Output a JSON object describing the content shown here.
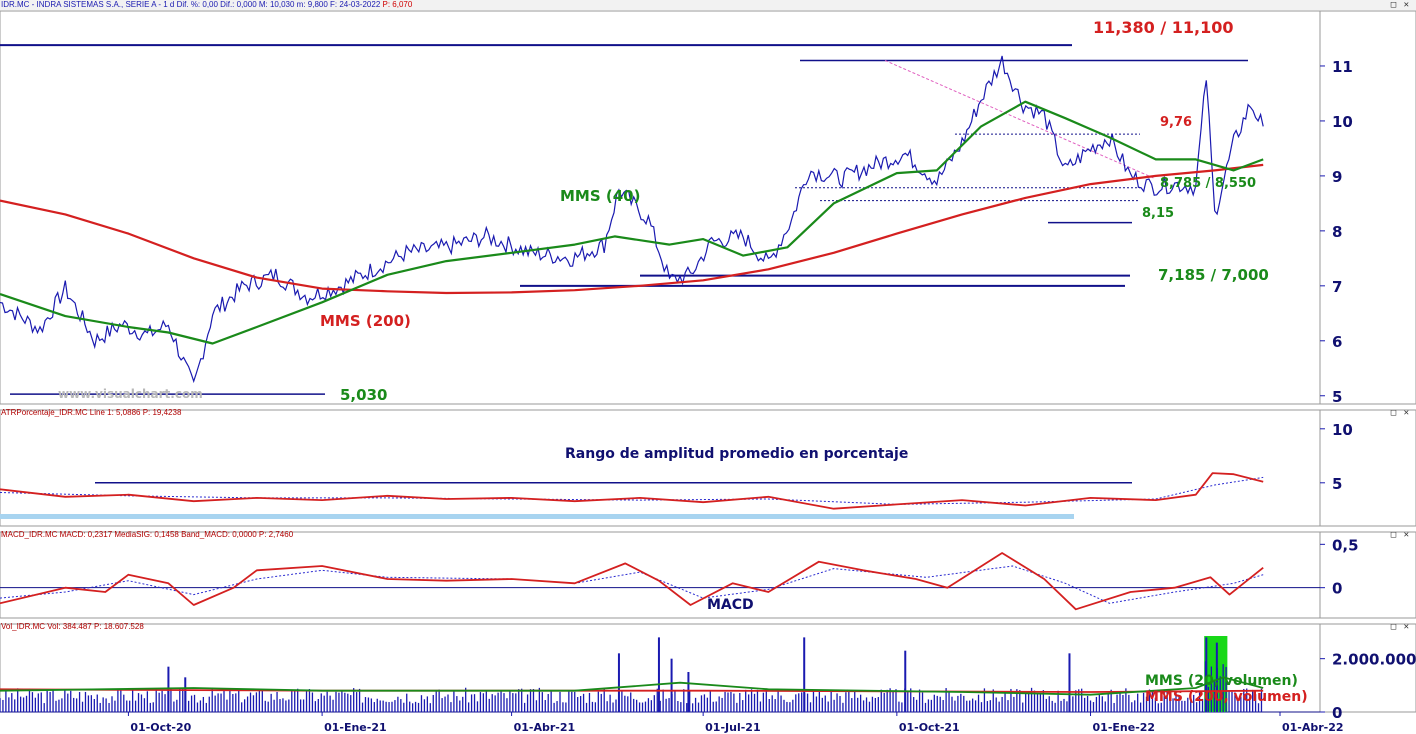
{
  "header": {
    "main": "IDR.MC - INDRA SISTEMAS S.A., SERIE A -  1 d  Dif. %: 0,00  Dif.: 0,000  M: 10,030  m: 9,800  F: 24-03-2022",
    "main_p": "P: 6,070",
    "atr": "ATRPorcentaje_IDR.MC  Line 1: 5,0886  P: 19,4238",
    "macd": "MACD_IDR.MC  MACD: 0,2317  MediaSIG: 0,1458  Band_MACD: 0,0000  P: 2,7460",
    "vol": "Vol_IDR.MC  Vol: 384.487  P: 18.607.528"
  },
  "window_buttons": "□ ✕",
  "annotations": {
    "r1": "11,380 / 11,100",
    "r2": "9,76",
    "r3": "8,785 / 8,550",
    "r4": "8,15",
    "r5": "7,185 / 7,000",
    "r6": "5,030",
    "mms40": "MMS (40)",
    "mms200": "MMS (200)",
    "watermark": "www.visualchart.com",
    "atr_title": "Rango de amplitud promedio en porcentaje",
    "macd_title": "MACD",
    "vol20": "MMS (20, volumen)",
    "vol200": "MMS (200, volumen)"
  },
  "colors": {
    "price": "#1a1ab0",
    "mms40": "#1a8a1a",
    "mms200": "#d42020",
    "level": "#10108a",
    "signal": "#2a2ad0",
    "volume_highlight": "#18d818",
    "atr_band": "#a8d4f0",
    "trend": "#e060c0"
  },
  "chart_data": [
    {
      "type": "line",
      "panel": "price",
      "yticks": [
        5,
        6,
        7,
        8,
        9,
        10,
        11
      ],
      "ylim": [
        4.85,
        12.0
      ],
      "xlim": [
        "2020-08-01",
        "2022-04-20"
      ],
      "xticks": [
        "01-Oct-20",
        "01-Ene-21",
        "01-Abr-21",
        "01-Jul-21",
        "01-Oct-21",
        "01-Ene-22",
        "01-Abr-22"
      ],
      "xtick_dates": [
        "2020-10-01",
        "2021-01-01",
        "2021-04-01",
        "2021-07-01",
        "2021-10-01",
        "2022-01-01",
        "2022-04-01"
      ],
      "series": [
        {
          "key": "price",
          "points": [
            [
              "2020-08-01",
              6.7
            ],
            [
              "2020-08-20",
              6.2
            ],
            [
              "2020-09-01",
              6.95
            ],
            [
              "2020-09-15",
              6.0
            ],
            [
              "2020-09-28",
              6.3
            ],
            [
              "2020-10-10",
              6.1
            ],
            [
              "2020-10-20",
              6.3
            ],
            [
              "2020-11-01",
              5.15
            ],
            [
              "2020-11-10",
              6.5
            ],
            [
              "2020-11-25",
              7.0
            ],
            [
              "2020-12-10",
              7.2
            ],
            [
              "2020-12-25",
              6.8
            ],
            [
              "2021-01-10",
              7.0
            ],
            [
              "2021-01-25",
              7.3
            ],
            [
              "2021-02-10",
              7.6
            ],
            [
              "2021-03-01",
              7.7
            ],
            [
              "2021-03-20",
              7.9
            ],
            [
              "2021-04-10",
              7.6
            ],
            [
              "2021-04-30",
              7.5
            ],
            [
              "2021-05-15",
              7.75
            ],
            [
              "2021-05-22",
              8.75
            ],
            [
              "2021-06-05",
              8.2
            ],
            [
              "2021-06-15",
              7.1
            ],
            [
              "2021-06-25",
              7.2
            ],
            [
              "2021-07-05",
              7.8
            ],
            [
              "2021-07-20",
              7.9
            ],
            [
              "2021-08-01",
              7.4
            ],
            [
              "2021-08-12",
              8.2
            ],
            [
              "2021-08-20",
              9.1
            ],
            [
              "2021-09-05",
              8.95
            ],
            [
              "2021-09-20",
              9.2
            ],
            [
              "2021-10-05",
              9.4
            ],
            [
              "2021-10-20",
              8.9
            ],
            [
              "2021-11-01",
              9.6
            ],
            [
              "2021-11-10",
              10.4
            ],
            [
              "2021-11-20",
              11.1
            ],
            [
              "2021-11-30",
              10.3
            ],
            [
              "2021-12-10",
              10.1
            ],
            [
              "2021-12-20",
              9.1
            ],
            [
              "2022-01-01",
              9.5
            ],
            [
              "2022-01-10",
              9.7
            ],
            [
              "2022-01-20",
              9.0
            ],
            [
              "2022-01-30",
              8.8
            ],
            [
              "2022-02-10",
              8.85
            ],
            [
              "2022-02-20",
              8.8
            ],
            [
              "2022-02-25",
              10.8
            ],
            [
              "2022-03-01",
              8.3
            ],
            [
              "2022-03-10",
              9.6
            ],
            [
              "2022-03-18",
              10.3
            ],
            [
              "2022-03-24",
              9.9
            ]
          ]
        },
        {
          "key": "mms40",
          "points": [
            [
              "2020-08-01",
              6.85
            ],
            [
              "2020-09-01",
              6.45
            ],
            [
              "2020-10-01",
              6.25
            ],
            [
              "2020-10-20",
              6.15
            ],
            [
              "2020-11-10",
              5.95
            ],
            [
              "2020-12-01",
              6.25
            ],
            [
              "2021-01-01",
              6.7
            ],
            [
              "2021-02-01",
              7.2
            ],
            [
              "2021-03-01",
              7.45
            ],
            [
              "2021-04-01",
              7.6
            ],
            [
              "2021-05-01",
              7.75
            ],
            [
              "2021-05-20",
              7.9
            ],
            [
              "2021-06-15",
              7.75
            ],
            [
              "2021-07-01",
              7.85
            ],
            [
              "2021-07-20",
              7.55
            ],
            [
              "2021-08-10",
              7.7
            ],
            [
              "2021-09-01",
              8.5
            ],
            [
              "2021-10-01",
              9.05
            ],
            [
              "2021-10-20",
              9.1
            ],
            [
              "2021-11-10",
              9.9
            ],
            [
              "2021-12-01",
              10.35
            ],
            [
              "2021-12-20",
              10.05
            ],
            [
              "2022-01-10",
              9.7
            ],
            [
              "2022-02-01",
              9.3
            ],
            [
              "2022-02-20",
              9.3
            ],
            [
              "2022-03-10",
              9.1
            ],
            [
              "2022-03-24",
              9.3
            ]
          ]
        },
        {
          "key": "mms200",
          "points": [
            [
              "2020-08-01",
              8.55
            ],
            [
              "2020-09-01",
              8.3
            ],
            [
              "2020-10-01",
              7.95
            ],
            [
              "2020-11-01",
              7.5
            ],
            [
              "2020-12-01",
              7.15
            ],
            [
              "2021-01-01",
              6.95
            ],
            [
              "2021-02-01",
              6.9
            ],
            [
              "2021-03-01",
              6.87
            ],
            [
              "2021-04-01",
              6.88
            ],
            [
              "2021-05-01",
              6.92
            ],
            [
              "2021-06-01",
              7.0
            ],
            [
              "2021-07-01",
              7.1
            ],
            [
              "2021-08-01",
              7.3
            ],
            [
              "2021-09-01",
              7.6
            ],
            [
              "2021-10-01",
              7.95
            ],
            [
              "2021-11-01",
              8.3
            ],
            [
              "2021-12-01",
              8.6
            ],
            [
              "2022-01-01",
              8.85
            ],
            [
              "2022-02-01",
              9.0
            ],
            [
              "2022-03-01",
              9.1
            ],
            [
              "2022-03-24",
              9.2
            ]
          ]
        }
      ]
    },
    {
      "type": "line",
      "panel": "atr",
      "yticks": [
        5,
        10
      ],
      "ylim": [
        1.0,
        11.0
      ],
      "series": [
        {
          "key": "atr",
          "points": [
            [
              "2020-08-01",
              4.4
            ],
            [
              "2020-09-01",
              3.7
            ],
            [
              "2020-10-01",
              3.9
            ],
            [
              "2020-11-01",
              3.3
            ],
            [
              "2020-12-01",
              3.6
            ],
            [
              "2021-01-01",
              3.4
            ],
            [
              "2021-02-01",
              3.8
            ],
            [
              "2021-03-01",
              3.5
            ],
            [
              "2021-04-01",
              3.6
            ],
            [
              "2021-05-01",
              3.3
            ],
            [
              "2021-06-01",
              3.6
            ],
            [
              "2021-07-01",
              3.2
            ],
            [
              "2021-08-01",
              3.7
            ],
            [
              "2021-09-01",
              2.6
            ],
            [
              "2021-10-01",
              3.0
            ],
            [
              "2021-11-01",
              3.4
            ],
            [
              "2021-12-01",
              2.9
            ],
            [
              "2022-01-01",
              3.6
            ],
            [
              "2022-02-01",
              3.4
            ],
            [
              "2022-02-20",
              3.9
            ],
            [
              "2022-02-28",
              5.9
            ],
            [
              "2022-03-10",
              5.8
            ],
            [
              "2022-03-24",
              5.1
            ]
          ]
        },
        {
          "key": "atr_sig",
          "points": [
            [
              "2020-08-01",
              4.1
            ],
            [
              "2020-10-01",
              3.8
            ],
            [
              "2020-12-01",
              3.6
            ],
            [
              "2021-02-01",
              3.6
            ],
            [
              "2021-04-01",
              3.5
            ],
            [
              "2021-06-01",
              3.4
            ],
            [
              "2021-08-01",
              3.5
            ],
            [
              "2021-10-01",
              3.0
            ],
            [
              "2021-12-01",
              3.2
            ],
            [
              "2022-02-01",
              3.5
            ],
            [
              "2022-03-01",
              4.8
            ],
            [
              "2022-03-24",
              5.5
            ]
          ]
        }
      ]
    },
    {
      "type": "line",
      "panel": "macd",
      "yticks": [
        0,
        0.5
      ],
      "ytick_labels": [
        "0",
        "0,5"
      ],
      "ylim": [
        -0.35,
        0.55
      ],
      "series": [
        {
          "key": "macd",
          "points": [
            [
              "2020-08-01",
              -0.18
            ],
            [
              "2020-09-01",
              0.0
            ],
            [
              "2020-09-20",
              -0.05
            ],
            [
              "2020-10-01",
              0.15
            ],
            [
              "2020-10-20",
              0.05
            ],
            [
              "2020-11-01",
              -0.2
            ],
            [
              "2020-11-20",
              0.0
            ],
            [
              "2020-12-01",
              0.2
            ],
            [
              "2021-01-01",
              0.25
            ],
            [
              "2021-02-01",
              0.1
            ],
            [
              "2021-03-01",
              0.08
            ],
            [
              "2021-04-01",
              0.1
            ],
            [
              "2021-05-01",
              0.05
            ],
            [
              "2021-05-25",
              0.28
            ],
            [
              "2021-06-10",
              0.08
            ],
            [
              "2021-06-25",
              -0.2
            ],
            [
              "2021-07-15",
              0.05
            ],
            [
              "2021-08-01",
              -0.05
            ],
            [
              "2021-08-25",
              0.3
            ],
            [
              "2021-09-15",
              0.2
            ],
            [
              "2021-10-10",
              0.1
            ],
            [
              "2021-10-25",
              0.0
            ],
            [
              "2021-11-20",
              0.4
            ],
            [
              "2021-12-10",
              0.1
            ],
            [
              "2021-12-25",
              -0.25
            ],
            [
              "2022-01-20",
              -0.05
            ],
            [
              "2022-02-10",
              0.0
            ],
            [
              "2022-02-27",
              0.12
            ],
            [
              "2022-03-08",
              -0.08
            ],
            [
              "2022-03-24",
              0.23
            ]
          ]
        },
        {
          "key": "macd_sig",
          "points": [
            [
              "2020-08-01",
              -0.12
            ],
            [
              "2020-09-01",
              -0.05
            ],
            [
              "2020-10-01",
              0.08
            ],
            [
              "2020-11-01",
              -0.08
            ],
            [
              "2020-12-01",
              0.1
            ],
            [
              "2021-01-01",
              0.2
            ],
            [
              "2021-02-01",
              0.12
            ],
            [
              "2021-04-01",
              0.1
            ],
            [
              "2021-05-01",
              0.05
            ],
            [
              "2021-06-01",
              0.18
            ],
            [
              "2021-07-01",
              -0.12
            ],
            [
              "2021-08-01",
              -0.02
            ],
            [
              "2021-09-01",
              0.22
            ],
            [
              "2021-10-15",
              0.12
            ],
            [
              "2021-11-25",
              0.25
            ],
            [
              "2021-12-20",
              0.05
            ],
            [
              "2022-01-10",
              -0.18
            ],
            [
              "2022-02-10",
              -0.05
            ],
            [
              "2022-03-10",
              0.05
            ],
            [
              "2022-03-24",
              0.15
            ]
          ]
        }
      ]
    },
    {
      "type": "bar",
      "panel": "volume",
      "yticks": [
        0,
        2000000
      ],
      "ytick_labels": [
        "0",
        "2.000.000"
      ],
      "ylim": [
        0,
        3000000
      ],
      "spikes": [
        [
          "2020-10-20",
          1700000
        ],
        [
          "2020-10-28",
          1300000
        ],
        [
          "2021-05-22",
          2200000
        ],
        [
          "2021-06-10",
          2800000
        ],
        [
          "2021-06-16",
          2000000
        ],
        [
          "2021-06-24",
          1500000
        ],
        [
          "2021-08-18",
          2800000
        ],
        [
          "2021-10-05",
          2300000
        ],
        [
          "2021-12-22",
          2200000
        ],
        [
          "2022-02-25",
          2800000
        ],
        [
          "2022-03-02",
          2600000
        ]
      ],
      "series": [
        {
          "key": "vol20",
          "points": [
            [
              "2020-08-01",
              800000
            ],
            [
              "2020-11-01",
              900000
            ],
            [
              "2021-01-01",
              800000
            ],
            [
              "2021-05-01",
              800000
            ],
            [
              "2021-06-20",
              1100000
            ],
            [
              "2021-08-01",
              850000
            ],
            [
              "2021-11-01",
              750000
            ],
            [
              "2022-01-01",
              650000
            ],
            [
              "2022-02-20",
              900000
            ],
            [
              "2022-03-05",
              1300000
            ],
            [
              "2022-03-24",
              900000
            ]
          ]
        },
        {
          "key": "vol200",
          "points": [
            [
              "2020-08-01",
              850000
            ],
            [
              "2021-01-01",
              800000
            ],
            [
              "2021-07-01",
              800000
            ],
            [
              "2022-01-01",
              750000
            ],
            [
              "2022-03-24",
              800000
            ]
          ]
        }
      ]
    }
  ]
}
